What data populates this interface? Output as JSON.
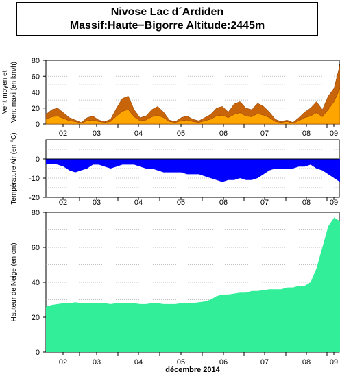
{
  "header": {
    "title_line1": "Nivose Lac d´Ardiden",
    "title_line2": "Massif:Haute−Bigorre Altitude:2445m"
  },
  "colors": {
    "wind_max": "#c8640a",
    "wind_mean": "#ffa500",
    "temperature": "#0000ff",
    "snow": "#33ee99",
    "grid": "#aaaaaa"
  },
  "chart_data": [
    {
      "type": "area",
      "ylabel_lines": [
        "Vent moyen et",
        "Vent maxi (en km/h)"
      ],
      "ylim": [
        0,
        80
      ],
      "yticks": [
        0,
        20,
        40,
        60,
        80
      ],
      "categories": [
        "02",
        "03",
        "04",
        "05",
        "06",
        "07",
        "08",
        "09"
      ],
      "grid": true,
      "x": [
        0.0,
        0.2,
        0.4,
        0.6,
        0.8,
        1.0,
        1.2,
        1.4,
        1.6,
        1.8,
        2.0,
        2.2,
        2.4,
        2.6,
        2.8,
        3.0,
        3.2,
        3.4,
        3.6,
        3.8,
        4.0,
        4.2,
        4.4,
        4.6,
        4.8,
        5.0,
        5.2,
        5.4,
        5.6,
        5.8,
        6.0,
        6.2,
        6.4,
        6.6,
        6.8,
        7.0,
        7.2,
        7.4,
        7.6,
        7.8,
        8.0,
        8.2,
        8.4,
        8.6,
        8.8,
        9.0,
        9.2,
        9.4,
        9.6,
        9.8,
        10.0
      ],
      "series": [
        {
          "values": [
            12,
            18,
            20,
            14,
            8,
            5,
            2,
            8,
            10,
            5,
            3,
            6,
            20,
            32,
            35,
            18,
            8,
            10,
            18,
            22,
            15,
            5,
            3,
            8,
            10,
            6,
            4,
            8,
            12,
            20,
            22,
            15,
            25,
            28,
            20,
            18,
            26,
            22,
            15,
            6,
            3,
            5,
            2,
            8,
            15,
            20,
            28,
            18,
            35,
            45,
            75
          ]
        },
        {
          "values": [
            6,
            9,
            10,
            7,
            4,
            3,
            1,
            4,
            5,
            3,
            2,
            3,
            10,
            16,
            18,
            9,
            4,
            5,
            9,
            11,
            8,
            3,
            2,
            4,
            5,
            3,
            2,
            4,
            6,
            10,
            11,
            8,
            12,
            14,
            10,
            9,
            13,
            11,
            8,
            3,
            2,
            3,
            1,
            4,
            8,
            10,
            14,
            9,
            18,
            28,
            45
          ]
        }
      ]
    },
    {
      "type": "area",
      "ylabel": "Température Air (en °C)",
      "ylim": [
        -20,
        10
      ],
      "yticks": [
        -20,
        -10,
        0
      ],
      "categories": [
        "02",
        "03",
        "04",
        "05",
        "06",
        "07",
        "08",
        "09"
      ],
      "grid": true,
      "x": [
        0.0,
        0.2,
        0.4,
        0.6,
        0.8,
        1.0,
        1.2,
        1.4,
        1.6,
        1.8,
        2.0,
        2.2,
        2.4,
        2.6,
        2.8,
        3.0,
        3.2,
        3.4,
        3.6,
        3.8,
        4.0,
        4.2,
        4.4,
        4.6,
        4.8,
        5.0,
        5.2,
        5.4,
        5.6,
        5.8,
        6.0,
        6.2,
        6.4,
        6.6,
        6.8,
        7.0,
        7.2,
        7.4,
        7.6,
        7.8,
        8.0,
        8.2,
        8.4,
        8.6,
        8.8,
        9.0,
        9.2,
        9.4,
        9.6,
        9.8,
        10.0
      ],
      "series": [
        {
          "values": [
            -3,
            -2.5,
            -3,
            -4,
            -6,
            -7,
            -6,
            -5,
            -3,
            -3,
            -4,
            -5,
            -4,
            -3,
            -3,
            -3,
            -4,
            -5,
            -5,
            -6,
            -7,
            -7,
            -7,
            -7,
            -8,
            -8,
            -8,
            -9,
            -10,
            -11,
            -12,
            -11,
            -11,
            -10,
            -11,
            -11,
            -10,
            -8,
            -6,
            -5,
            -5,
            -5,
            -5,
            -4,
            -4,
            -3,
            -5,
            -6,
            -8,
            -10,
            -12
          ]
        }
      ]
    },
    {
      "type": "area",
      "ylabel": "Hauteur de Neige (en cm)",
      "xlabel": "décembre 2014",
      "ylim": [
        0,
        80
      ],
      "yticks": [
        0,
        20,
        40,
        60,
        80
      ],
      "categories": [
        "02",
        "03",
        "04",
        "05",
        "06",
        "07",
        "08",
        "09"
      ],
      "grid": true,
      "x": [
        0.0,
        0.2,
        0.4,
        0.6,
        0.8,
        1.0,
        1.2,
        1.4,
        1.6,
        1.8,
        2.0,
        2.2,
        2.4,
        2.6,
        2.8,
        3.0,
        3.2,
        3.4,
        3.6,
        3.8,
        4.0,
        4.2,
        4.4,
        4.6,
        4.8,
        5.0,
        5.2,
        5.4,
        5.6,
        5.8,
        6.0,
        6.2,
        6.4,
        6.6,
        6.8,
        7.0,
        7.2,
        7.4,
        7.6,
        7.8,
        8.0,
        8.2,
        8.4,
        8.6,
        8.8,
        9.0,
        9.2,
        9.4,
        9.6,
        9.8,
        10.0
      ],
      "series": [
        {
          "values": [
            26,
            27,
            27.5,
            28,
            28,
            28.5,
            28,
            28,
            28,
            28,
            28,
            27.5,
            28,
            28,
            28,
            28,
            27.5,
            27.5,
            28,
            28,
            27.5,
            27.5,
            27.5,
            28,
            28,
            28,
            28.5,
            29,
            30,
            32,
            33,
            33,
            33.5,
            34,
            34,
            35,
            35,
            35.5,
            36,
            36,
            36,
            37,
            37,
            38,
            38,
            40,
            48,
            60,
            72,
            77,
            75
          ]
        }
      ]
    }
  ]
}
